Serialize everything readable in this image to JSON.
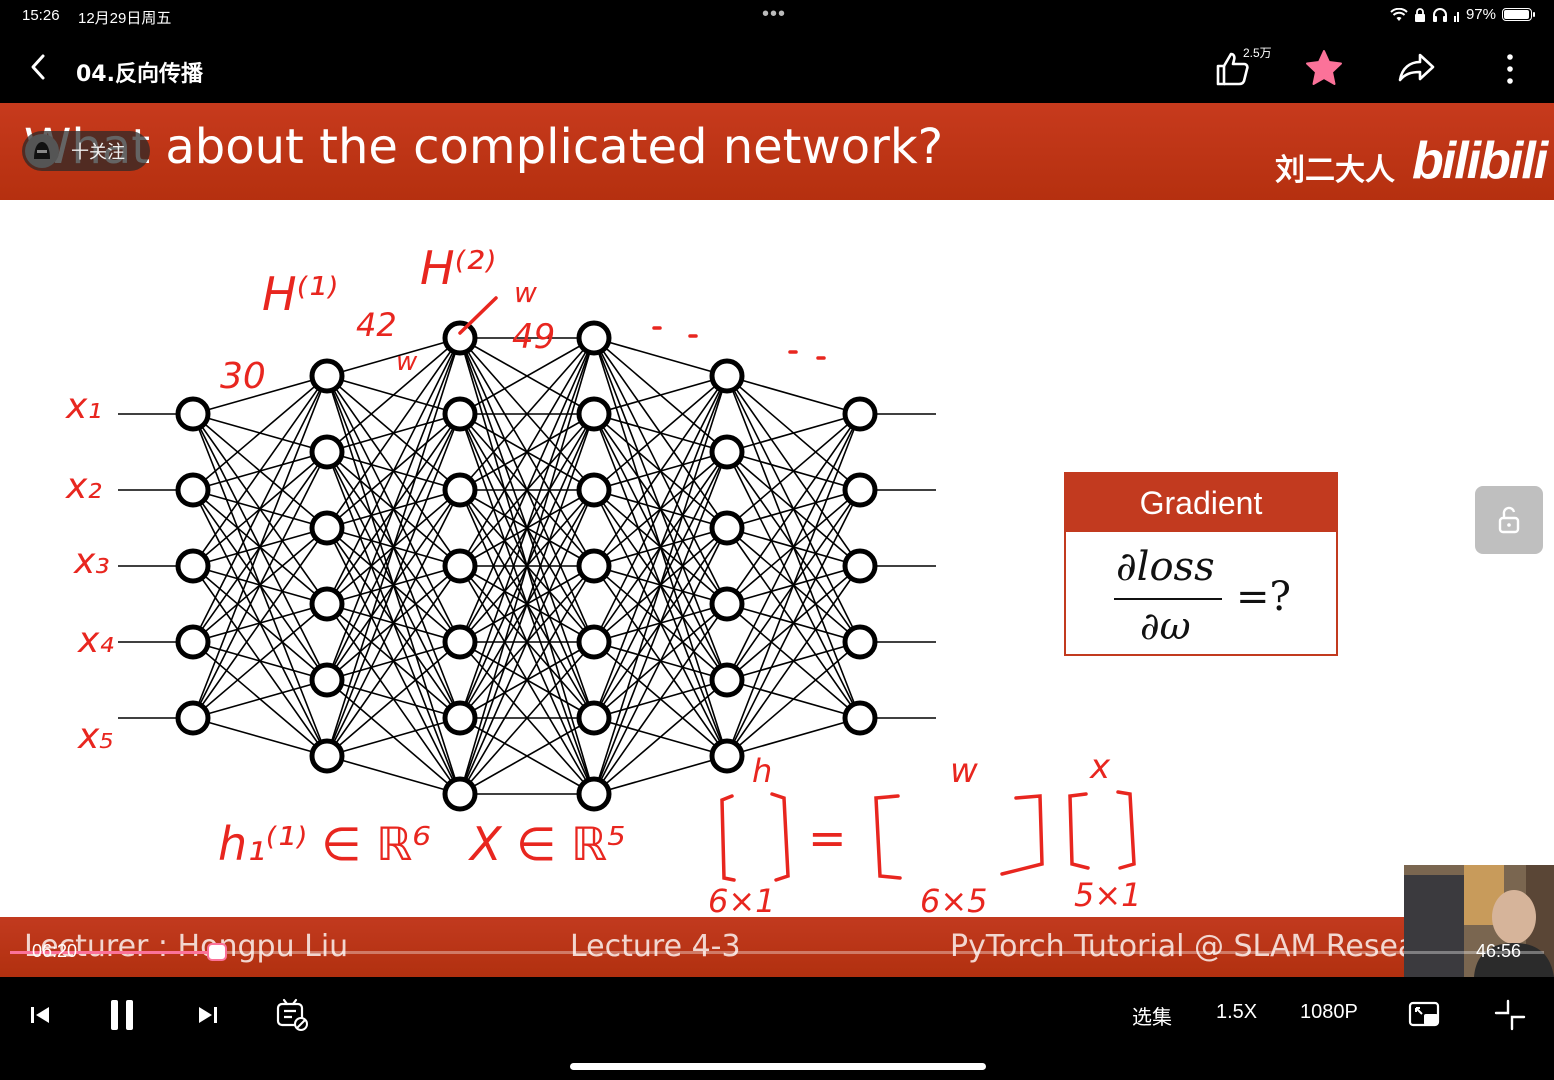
{
  "status_bar": {
    "time": "15:26",
    "date": "12月29日周五",
    "battery": "97%",
    "battery_level": 0.97
  },
  "header": {
    "back_icon": "chevron-left-icon",
    "title": "04.反向传播",
    "like_count": "2.5万",
    "favorite_color": "#fb7299"
  },
  "slide": {
    "title": "What about the complicated network?",
    "author_watermark": "刘二大人",
    "logo_text": "bilibili",
    "follow_label": "十关注",
    "gradient_box": {
      "header": "Gradient",
      "numerator": "∂loss",
      "denominator": "∂ω",
      "suffix": "=?"
    },
    "footer": {
      "lecturer": "Lecturer : Hongpu Liu",
      "lecture": "Lecture 4-3",
      "course": "PyTorch Tutorial @ SLAM Research"
    },
    "network_layer_sizes": [
      5,
      6,
      7,
      7,
      6,
      5
    ],
    "annotations": {
      "inputs": [
        "x₁",
        "x₂",
        "x₃",
        "x₄",
        "x₅"
      ],
      "h1_label": "H⁽¹⁾",
      "h2_label": "H⁽²⁾",
      "num_30": "30",
      "num_42": "42",
      "num_49": "49",
      "w1": "w",
      "w2": "w",
      "h_in_R6": "h₁⁽¹⁾ ∈ ℝ⁶",
      "x_in_R5": "X ∈ ℝ⁵",
      "eq_h": "h",
      "eq_w": "w",
      "eq_x": "x",
      "dim_6x1": "6×1",
      "dim_6x5": "6×5",
      "dim_5x1": "5×1",
      "equals": "="
    }
  },
  "player": {
    "current_time": "06:20",
    "duration": "46:56",
    "progress": 0.135,
    "episodes_label": "选集",
    "speed_label": "1.5X",
    "quality_label": "1080P"
  }
}
